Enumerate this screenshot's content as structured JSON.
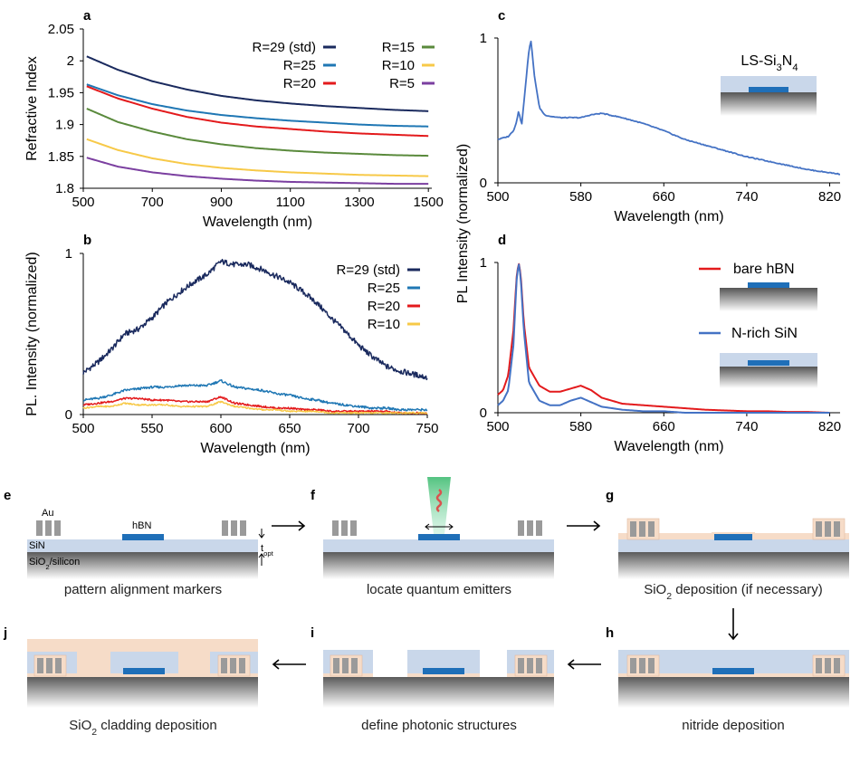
{
  "colors": {
    "navy": "#1a2a5e",
    "blue": "#1f77b4",
    "red": "#e31a1c",
    "green": "#5a8a3c",
    "yellow": "#f7c948",
    "purple": "#7b3fa0",
    "steel": "#4472c4",
    "hbn": "#1f6fb8",
    "sin_layer": "#c9d7ea",
    "substrate": "#6e6e6e",
    "oxide": "#f6dcc8",
    "marker": "#9a9a9a",
    "laser": "#6fd39a"
  },
  "chart_data": [
    {
      "panel": "a",
      "type": "line",
      "xlabel": "Wavelength (nm)",
      "ylabel": "Refractive Index",
      "xlim": [
        500,
        1510
      ],
      "ylim": [
        1.8,
        2.05
      ],
      "xticks": [
        "500",
        "700",
        "900",
        "1100",
        "1300",
        "1500"
      ],
      "yticks": [
        "1.8",
        "1.85",
        "1.9",
        "1.95",
        "2",
        "2.05"
      ],
      "x": [
        510,
        600,
        700,
        800,
        900,
        1000,
        1100,
        1200,
        1300,
        1400,
        1500
      ],
      "series": [
        {
          "name": "R=29 (std)",
          "color": "navy",
          "values": [
            2.007,
            1.986,
            1.968,
            1.955,
            1.945,
            1.938,
            1.933,
            1.929,
            1.926,
            1.923,
            1.921
          ]
        },
        {
          "name": "R=25",
          "color": "blue",
          "values": [
            1.963,
            1.946,
            1.932,
            1.922,
            1.915,
            1.91,
            1.906,
            1.903,
            1.9,
            1.898,
            1.897
          ]
        },
        {
          "name": "R=20",
          "color": "red",
          "values": [
            1.96,
            1.941,
            1.925,
            1.912,
            1.903,
            1.897,
            1.893,
            1.889,
            1.886,
            1.884,
            1.882
          ]
        },
        {
          "name": "R=15",
          "color": "green",
          "values": [
            1.925,
            1.904,
            1.889,
            1.877,
            1.869,
            1.863,
            1.859,
            1.856,
            1.854,
            1.852,
            1.851
          ]
        },
        {
          "name": "R=10",
          "color": "yellow",
          "values": [
            1.877,
            1.86,
            1.847,
            1.838,
            1.832,
            1.828,
            1.825,
            1.823,
            1.821,
            1.82,
            1.819
          ]
        },
        {
          "name": "R=5",
          "color": "purple",
          "values": [
            1.848,
            1.834,
            1.825,
            1.819,
            1.815,
            1.812,
            1.81,
            1.809,
            1.808,
            1.807,
            1.807
          ]
        }
      ]
    },
    {
      "panel": "b",
      "type": "line",
      "xlabel": "Wavelength (nm)",
      "ylabel": "PL. Intensity (normalized)",
      "xlim": [
        500,
        750
      ],
      "ylim": [
        0,
        1
      ],
      "xticks": [
        "500",
        "550",
        "600",
        "650",
        "700",
        "750"
      ],
      "yticks": [
        "0",
        "1"
      ],
      "x": [
        500,
        510,
        520,
        530,
        540,
        550,
        560,
        570,
        580,
        590,
        600,
        610,
        620,
        630,
        640,
        650,
        660,
        670,
        680,
        690,
        700,
        710,
        720,
        730,
        740,
        750
      ],
      "series": [
        {
          "name": "R=29 (std)",
          "color": "navy",
          "values": [
            0.26,
            0.32,
            0.4,
            0.5,
            0.53,
            0.6,
            0.69,
            0.76,
            0.82,
            0.87,
            0.95,
            0.93,
            0.93,
            0.9,
            0.86,
            0.82,
            0.76,
            0.69,
            0.6,
            0.52,
            0.43,
            0.36,
            0.3,
            0.27,
            0.25,
            0.23
          ]
        },
        {
          "name": "R=25",
          "color": "blue",
          "values": [
            0.09,
            0.1,
            0.12,
            0.15,
            0.16,
            0.17,
            0.17,
            0.18,
            0.18,
            0.18,
            0.21,
            0.17,
            0.16,
            0.15,
            0.13,
            0.12,
            0.1,
            0.09,
            0.07,
            0.06,
            0.05,
            0.04,
            0.04,
            0.03,
            0.03,
            0.03
          ]
        },
        {
          "name": "R=20",
          "color": "red",
          "values": [
            0.06,
            0.07,
            0.08,
            0.1,
            0.1,
            0.09,
            0.09,
            0.08,
            0.08,
            0.08,
            0.11,
            0.07,
            0.06,
            0.05,
            0.04,
            0.04,
            0.03,
            0.03,
            0.02,
            0.02,
            0.02,
            0.02,
            0.02,
            0.01,
            0.01,
            0.01
          ]
        },
        {
          "name": "R=10",
          "color": "yellow",
          "values": [
            0.04,
            0.05,
            0.05,
            0.07,
            0.06,
            0.06,
            0.06,
            0.05,
            0.05,
            0.05,
            0.08,
            0.05,
            0.04,
            0.03,
            0.03,
            0.02,
            0.02,
            0.02,
            0.01,
            0.01,
            0.01,
            0.01,
            0.01,
            0.01,
            0.01,
            0.01
          ]
        }
      ]
    },
    {
      "panel": "c",
      "type": "line",
      "xlabel": "Wavelength (nm)",
      "xlim": [
        500,
        830
      ],
      "ylim": [
        0,
        1
      ],
      "xticks": [
        "500",
        "580",
        "660",
        "740",
        "820"
      ],
      "yticks": [
        "0",
        "1"
      ],
      "inset_label": "LS-Si3N4",
      "x": [
        500,
        510,
        515,
        518,
        520,
        523,
        527,
        530,
        532,
        535,
        540,
        545,
        550,
        560,
        580,
        590,
        600,
        620,
        640,
        660,
        680,
        700,
        720,
        740,
        760,
        780,
        800,
        820,
        830
      ],
      "series": [
        {
          "name": "LS-Si3N4",
          "color": "steel",
          "values": [
            0.3,
            0.32,
            0.36,
            0.42,
            0.5,
            0.4,
            0.7,
            0.92,
            0.98,
            0.75,
            0.52,
            0.47,
            0.46,
            0.45,
            0.45,
            0.47,
            0.48,
            0.45,
            0.41,
            0.36,
            0.3,
            0.26,
            0.22,
            0.18,
            0.15,
            0.12,
            0.09,
            0.07,
            0.06
          ]
        }
      ]
    },
    {
      "panel": "d",
      "type": "line",
      "xlabel": "Wavelength (nm)",
      "xlim": [
        500,
        830
      ],
      "ylim": [
        0,
        1
      ],
      "xticks": [
        "500",
        "580",
        "660",
        "740",
        "820"
      ],
      "yticks": [
        "0",
        "1"
      ],
      "shared_ylabel": "PL Intensity (normalized)",
      "x": [
        500,
        505,
        510,
        515,
        518,
        520,
        522,
        525,
        530,
        540,
        550,
        560,
        570,
        580,
        590,
        600,
        620,
        640,
        660,
        680,
        700,
        720,
        740,
        760,
        780,
        800,
        820
      ],
      "series": [
        {
          "name": "bare hBN",
          "color": "red",
          "values": [
            0.12,
            0.15,
            0.25,
            0.55,
            0.9,
            1.0,
            0.92,
            0.6,
            0.3,
            0.18,
            0.14,
            0.14,
            0.16,
            0.18,
            0.15,
            0.1,
            0.06,
            0.05,
            0.04,
            0.03,
            0.02,
            0.015,
            0.01,
            0.01,
            0.005,
            0.005,
            0.0
          ]
        },
        {
          "name": "N-rich SiN",
          "color": "steel",
          "values": [
            0.05,
            0.08,
            0.15,
            0.45,
            0.88,
            1.0,
            0.9,
            0.55,
            0.2,
            0.08,
            0.05,
            0.05,
            0.08,
            0.1,
            0.07,
            0.04,
            0.02,
            0.01,
            0.01,
            0.0,
            0.0,
            0.0,
            0.0,
            0.0,
            0.0,
            0.0,
            0.0
          ]
        }
      ]
    }
  ],
  "panels": {
    "a": "a",
    "b": "b",
    "c": "c",
    "d": "d",
    "e": "e",
    "f": "f",
    "g": "g",
    "h": "h",
    "i": "i",
    "j": "j"
  },
  "schematic": {
    "label_au": "Au",
    "label_hbn": "hBN",
    "label_sin": "SiN",
    "label_sio2_silicon": "SiO2/silicon",
    "label_topt": "topt",
    "steps": {
      "e": "pattern alignment markers",
      "f": "locate quantum emitters",
      "g": "SiO2 deposition (if necessary)",
      "h": "nitride deposition",
      "i": "define photonic structures",
      "j": "SiO2 cladding deposition"
    }
  }
}
